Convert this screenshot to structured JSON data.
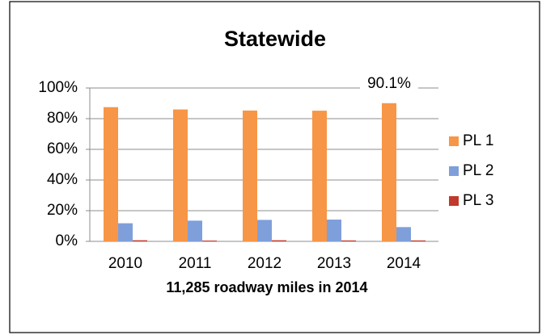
{
  "chart_data": {
    "type": "bar",
    "title": "Statewide",
    "x_label": "11,285 roadway miles in 2014",
    "categories": [
      "2010",
      "2011",
      "2012",
      "2013",
      "2014"
    ],
    "series": [
      {
        "name": "PL 1",
        "color": "#f79646",
        "values": [
          87.5,
          86,
          85.3,
          85.2,
          90.1
        ],
        "value_labels": [
          null,
          null,
          null,
          null,
          "90.1%"
        ]
      },
      {
        "name": "PL 2",
        "color": "#7f9fdb",
        "values": [
          11.8,
          13.5,
          14,
          14.2,
          9.3
        ]
      },
      {
        "name": "PL 3",
        "color": "#c0392b",
        "values": [
          0.7,
          0.5,
          0.7,
          0.6,
          0.6
        ]
      }
    ],
    "ylim": [
      0,
      100
    ],
    "yticks": [
      {
        "value": 0,
        "label": "0%"
      },
      {
        "value": 20,
        "label": "20%"
      },
      {
        "value": 40,
        "label": "40%"
      },
      {
        "value": 60,
        "label": "60%"
      },
      {
        "value": 80,
        "label": "80%"
      },
      {
        "value": 100,
        "label": "100%"
      }
    ],
    "grid": true,
    "legend": "right"
  }
}
